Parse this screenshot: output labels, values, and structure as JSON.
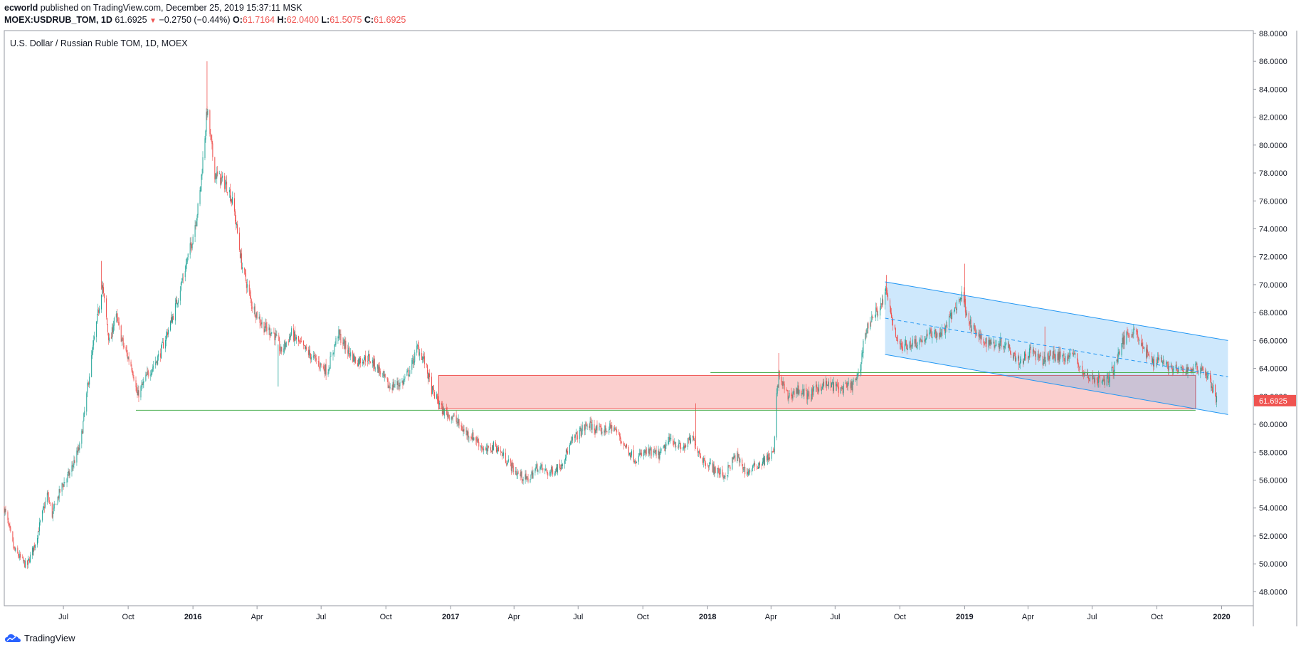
{
  "header": {
    "author": "ecworld",
    "published_text": "published on TradingView.com, December 25, 2019 15:37:11 MSK",
    "symbol": "MOEX:USDRUB_TOM, 1D",
    "last": "61.6925",
    "change": "−0.2750 (−0.44%)",
    "o_label": "O:",
    "o_value": "61.7164",
    "h_label": "H:",
    "h_value": "62.0400",
    "l_label": "L:",
    "l_value": "61.5075",
    "c_label": "C:",
    "c_value": "61.6925"
  },
  "footer": {
    "brand": "TradingView"
  },
  "colors": {
    "up": "#26a69a",
    "down": "#ef5350",
    "channel": "#2196f3",
    "zone": "#ef5350",
    "support": "#4caf50"
  },
  "chart_data": {
    "type": "candlestick",
    "title": "U.S. Dollar / Russian Ruble TOM, 1D, MOEX",
    "yticks": [
      "48.0000",
      "50.0000",
      "52.0000",
      "54.0000",
      "56.0000",
      "58.0000",
      "60.0000",
      "62.0000",
      "64.0000",
      "66.0000",
      "68.0000",
      "70.0000",
      "72.0000",
      "74.0000",
      "76.0000",
      "78.0000",
      "80.0000",
      "82.0000",
      "84.0000",
      "86.0000",
      "88.0000"
    ],
    "ylim": [
      47,
      88.2
    ],
    "xlim": [
      "2015-04-08",
      "2020-02-15"
    ],
    "xticks": [
      {
        "date": "2015-07-01",
        "label": "Jul",
        "bold": false
      },
      {
        "date": "2015-10-01",
        "label": "Oct",
        "bold": false
      },
      {
        "date": "2016-01-01",
        "label": "2016",
        "bold": true
      },
      {
        "date": "2016-04-01",
        "label": "Apr",
        "bold": false
      },
      {
        "date": "2016-07-01",
        "label": "Jul",
        "bold": false
      },
      {
        "date": "2016-10-01",
        "label": "Oct",
        "bold": false
      },
      {
        "date": "2017-01-01",
        "label": "2017",
        "bold": true
      },
      {
        "date": "2017-04-01",
        "label": "Apr",
        "bold": false
      },
      {
        "date": "2017-07-01",
        "label": "Jul",
        "bold": false
      },
      {
        "date": "2017-10-01",
        "label": "Oct",
        "bold": false
      },
      {
        "date": "2018-01-01",
        "label": "2018",
        "bold": true
      },
      {
        "date": "2018-04-01",
        "label": "Apr",
        "bold": false
      },
      {
        "date": "2018-07-01",
        "label": "Jul",
        "bold": false
      },
      {
        "date": "2018-10-01",
        "label": "Oct",
        "bold": false
      },
      {
        "date": "2019-01-01",
        "label": "2019",
        "bold": true
      },
      {
        "date": "2019-04-01",
        "label": "Apr",
        "bold": false
      },
      {
        "date": "2019-07-01",
        "label": "Jul",
        "bold": false
      },
      {
        "date": "2019-10-01",
        "label": "Oct",
        "bold": false
      },
      {
        "date": "2020-01-01",
        "label": "2020",
        "bold": true
      }
    ],
    "close_path": [
      [
        "2015-04-08",
        54.0
      ],
      [
        "2015-04-22",
        51.0
      ],
      [
        "2015-05-10",
        49.8
      ],
      [
        "2015-05-22",
        51.5
      ],
      [
        "2015-06-08",
        55.0
      ],
      [
        "2015-06-15",
        53.5
      ],
      [
        "2015-06-28",
        55.5
      ],
      [
        "2015-07-10",
        56.5
      ],
      [
        "2015-07-25",
        58.5
      ],
      [
        "2015-08-08",
        64.0
      ],
      [
        "2015-08-25",
        70.0
      ],
      [
        "2015-09-05",
        65.5
      ],
      [
        "2015-09-12",
        68.0
      ],
      [
        "2015-09-25",
        65.5
      ],
      [
        "2015-10-07",
        64.0
      ],
      [
        "2015-10-14",
        62.0
      ],
      [
        "2015-10-28",
        63.5
      ],
      [
        "2015-11-15",
        65.0
      ],
      [
        "2015-12-05",
        68.0
      ],
      [
        "2015-12-20",
        71.0
      ],
      [
        "2015-12-30",
        73.0
      ],
      [
        "2016-01-10",
        76.0
      ],
      [
        "2016-01-21",
        82.5
      ],
      [
        "2016-02-01",
        78.0
      ],
      [
        "2016-02-10",
        77.5
      ],
      [
        "2016-02-20",
        77.0
      ],
      [
        "2016-02-28",
        75.5
      ],
      [
        "2016-03-10",
        71.5
      ],
      [
        "2016-03-25",
        68.5
      ],
      [
        "2016-04-10",
        67.0
      ],
      [
        "2016-04-25",
        66.5
      ],
      [
        "2016-05-05",
        65.2
      ],
      [
        "2016-05-20",
        66.5
      ],
      [
        "2016-06-05",
        65.5
      ],
      [
        "2016-06-25",
        64.5
      ],
      [
        "2016-07-10",
        63.8
      ],
      [
        "2016-07-25",
        66.5
      ],
      [
        "2016-08-05",
        65.5
      ],
      [
        "2016-08-20",
        64.5
      ],
      [
        "2016-09-05",
        64.8
      ],
      [
        "2016-09-20",
        64.0
      ],
      [
        "2016-10-05",
        62.7
      ],
      [
        "2016-10-25",
        63.0
      ],
      [
        "2016-11-05",
        64.0
      ],
      [
        "2016-11-15",
        65.5
      ],
      [
        "2016-11-25",
        64.5
      ],
      [
        "2016-12-05",
        62.5
      ],
      [
        "2016-12-20",
        61.0
      ],
      [
        "2017-01-05",
        60.5
      ],
      [
        "2017-01-20",
        59.5
      ],
      [
        "2017-02-05",
        59.0
      ],
      [
        "2017-02-20",
        58.0
      ],
      [
        "2017-03-05",
        58.5
      ],
      [
        "2017-03-20",
        57.5
      ],
      [
        "2017-04-05",
        56.5
      ],
      [
        "2017-04-20",
        56.0
      ],
      [
        "2017-05-05",
        57.0
      ],
      [
        "2017-05-20",
        56.5
      ],
      [
        "2017-06-05",
        57.0
      ],
      [
        "2017-06-25",
        59.0
      ],
      [
        "2017-07-15",
        60.0
      ],
      [
        "2017-08-01",
        59.5
      ],
      [
        "2017-08-20",
        59.8
      ],
      [
        "2017-09-05",
        58.5
      ],
      [
        "2017-09-20",
        57.5
      ],
      [
        "2017-10-05",
        58.0
      ],
      [
        "2017-10-25",
        57.8
      ],
      [
        "2017-11-10",
        59.0
      ],
      [
        "2017-11-25",
        58.2
      ],
      [
        "2017-12-10",
        59.0
      ],
      [
        "2017-12-25",
        57.5
      ],
      [
        "2018-01-10",
        56.8
      ],
      [
        "2018-01-25",
        56.3
      ],
      [
        "2018-02-10",
        57.8
      ],
      [
        "2018-02-25",
        56.5
      ],
      [
        "2018-03-10",
        57.0
      ],
      [
        "2018-03-25",
        57.5
      ],
      [
        "2018-04-05",
        58.0
      ],
      [
        "2018-04-09",
        62.0
      ],
      [
        "2018-04-12",
        63.5
      ],
      [
        "2018-04-25",
        62.0
      ],
      [
        "2018-05-10",
        62.5
      ],
      [
        "2018-05-25",
        62.0
      ],
      [
        "2018-06-10",
        62.8
      ],
      [
        "2018-06-25",
        62.8
      ],
      [
        "2018-07-10",
        62.5
      ],
      [
        "2018-07-25",
        62.8
      ],
      [
        "2018-08-05",
        63.5
      ],
      [
        "2018-08-10",
        66.0
      ],
      [
        "2018-08-20",
        67.5
      ],
      [
        "2018-09-05",
        68.5
      ],
      [
        "2018-09-11",
        69.5
      ],
      [
        "2018-09-20",
        67.5
      ],
      [
        "2018-10-01",
        65.5
      ],
      [
        "2018-10-15",
        65.8
      ],
      [
        "2018-11-01",
        66.0
      ],
      [
        "2018-11-15",
        66.5
      ],
      [
        "2018-12-01",
        66.5
      ],
      [
        "2018-12-20",
        68.5
      ],
      [
        "2018-12-28",
        69.3
      ],
      [
        "2019-01-10",
        67.0
      ],
      [
        "2019-01-25",
        66.0
      ],
      [
        "2019-02-10",
        65.8
      ],
      [
        "2019-03-01",
        65.8
      ],
      [
        "2019-03-20",
        64.5
      ],
      [
        "2019-04-05",
        65.3
      ],
      [
        "2019-04-20",
        64.5
      ],
      [
        "2019-05-05",
        65.0
      ],
      [
        "2019-05-20",
        64.8
      ],
      [
        "2019-06-05",
        65.0
      ],
      [
        "2019-06-20",
        63.5
      ],
      [
        "2019-07-05",
        63.3
      ],
      [
        "2019-07-20",
        63.0
      ],
      [
        "2019-08-01",
        64.0
      ],
      [
        "2019-08-10",
        65.5
      ],
      [
        "2019-08-20",
        66.5
      ],
      [
        "2019-09-01",
        66.8
      ],
      [
        "2019-09-10",
        65.5
      ],
      [
        "2019-09-25",
        64.5
      ],
      [
        "2019-10-05",
        64.8
      ],
      [
        "2019-10-20",
        64.0
      ],
      [
        "2019-11-05",
        63.8
      ],
      [
        "2019-11-20",
        64.0
      ],
      [
        "2019-12-05",
        64.0
      ],
      [
        "2019-12-15",
        63.2
      ],
      [
        "2019-12-25",
        61.7
      ]
    ],
    "spikes": [
      {
        "date": "2015-08-24",
        "high": 71.7
      },
      {
        "date": "2016-01-21",
        "high": 86.0
      },
      {
        "date": "2016-05-01",
        "low": 62.7
      },
      {
        "date": "2017-12-15",
        "high": 61.5
      },
      {
        "date": "2018-04-12",
        "high": 65.1
      },
      {
        "date": "2018-09-12",
        "high": 70.7
      },
      {
        "date": "2019-01-01",
        "high": 71.5
      },
      {
        "date": "2019-04-25",
        "high": 67.0
      }
    ],
    "last_price_label": "61.6925",
    "drawings": {
      "support_line": {
        "from": "2015-10-12",
        "to": "2019-11-25",
        "y": 61.0
      },
      "zone": {
        "from": "2016-12-15",
        "to": "2019-11-25",
        "y_top": 63.5,
        "y_bottom": 61.1
      },
      "zone_top_line": {
        "from": "2018-01-05",
        "to": "2019-11-25",
        "y": 63.7
      },
      "channel": {
        "start": "2018-09-10",
        "end": "2020-01-10",
        "upper": [
          70.2,
          66.0
        ],
        "middle": [
          67.6,
          63.4
        ],
        "lower": [
          65.0,
          60.7
        ]
      }
    }
  }
}
